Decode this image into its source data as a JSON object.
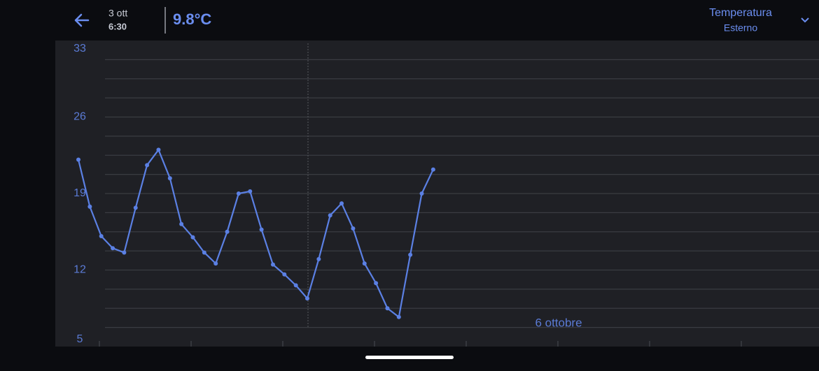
{
  "header": {
    "date": "3 ott",
    "time": "6:30",
    "reading": "9.8°C",
    "metric": "Temperatura",
    "location": "Esterno"
  },
  "chart_data": {
    "type": "line",
    "color": "#5b80e4",
    "categories": [
      null,
      null,
      null,
      null,
      null,
      null,
      null,
      null,
      null,
      null,
      null,
      null,
      null,
      null,
      null,
      null,
      null,
      null,
      null,
      null,
      null,
      null,
      null,
      null,
      null,
      null,
      null,
      null,
      null,
      null,
      null,
      null
    ],
    "values": [
      22.1,
      17.8,
      15.1,
      14.0,
      13.6,
      17.7,
      21.6,
      23.0,
      20.4,
      16.2,
      15.0,
      13.6,
      12.6,
      15.5,
      19.0,
      19.2,
      15.7,
      12.5,
      11.6,
      10.6,
      9.4,
      13.0,
      17.0,
      18.1,
      15.8,
      12.6,
      10.8,
      8.5,
      7.7,
      13.4,
      19.0,
      21.2
    ],
    "ylim": [
      5,
      33
    ],
    "yticks": [
      5,
      12,
      19,
      26,
      33
    ],
    "ygrid": [
      6.75,
      8.5,
      10.25,
      12,
      13.75,
      15.5,
      17.25,
      19,
      20.75,
      22.5,
      24.25,
      26,
      27.75,
      29.5,
      31.25
    ],
    "annotation": "6 ottobre"
  }
}
